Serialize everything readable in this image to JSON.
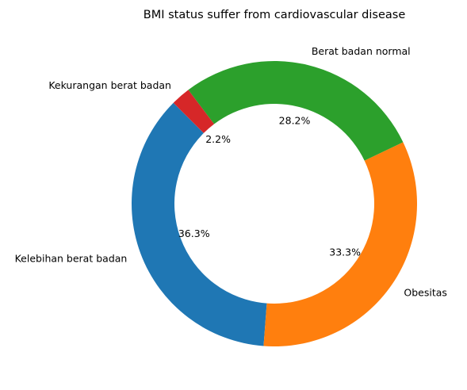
{
  "chart_data": {
    "type": "pie",
    "donut": true,
    "title": "BMI status suffer from cardiovascular disease",
    "slices": [
      {
        "label": "Kelebihan berat badan",
        "value": 36.3,
        "pct_label": "36.3%",
        "color": "#1f77b4"
      },
      {
        "label": "Obesitas",
        "value": 33.3,
        "pct_label": "33.3%",
        "color": "#ff7f0e"
      },
      {
        "label": "Berat badan normal",
        "value": 28.2,
        "pct_label": "28.2%",
        "color": "#2ca02c"
      },
      {
        "label": "Kekurangan berat badan",
        "value": 2.2,
        "pct_label": "2.2%",
        "color": "#d62728"
      }
    ]
  }
}
